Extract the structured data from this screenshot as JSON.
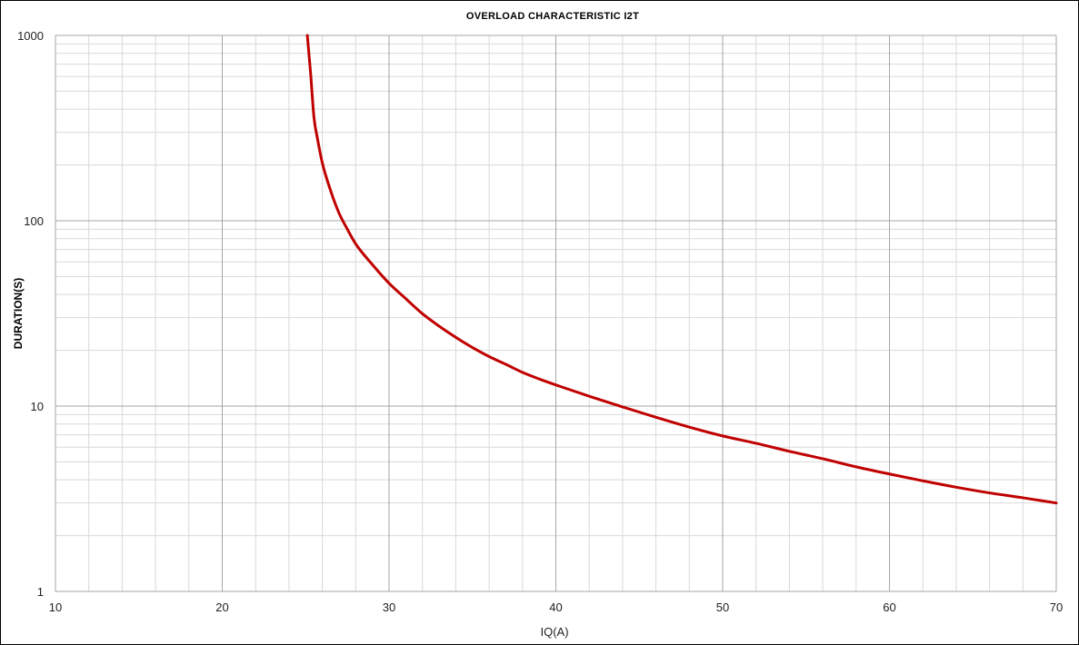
{
  "chart_data": {
    "type": "line",
    "title": "OVERLOAD CHARACTERISTIC I2T",
    "xlabel": "IQ(A)",
    "ylabel": "DURATION(S)",
    "xlim": [
      10,
      70
    ],
    "ylim": [
      1,
      1000
    ],
    "y_scale": "log",
    "x_ticks": [
      10,
      20,
      30,
      40,
      50,
      60,
      70
    ],
    "x_tick_labels": [
      "10",
      "20",
      "30",
      "40",
      "50",
      "60",
      "70"
    ],
    "y_ticks": [
      1,
      10,
      100,
      1000
    ],
    "y_tick_labels": [
      "1",
      "10",
      "100",
      "1000"
    ],
    "grid": true,
    "legend": "none",
    "colors": {
      "line": "#c00000",
      "major_grid": "#a6a6a6",
      "minor_grid": "#d9d9d9",
      "frame": "#000000"
    },
    "series": [
      {
        "x": [
          25.1,
          25.3,
          25.5,
          25.7,
          26.0,
          26.5,
          27.0,
          27.5,
          28,
          29,
          30,
          31,
          32,
          33,
          34,
          35,
          36,
          37,
          38,
          39,
          40,
          42,
          44,
          46,
          48,
          50,
          52,
          54,
          56,
          58,
          60,
          62,
          64,
          66,
          68,
          70
        ],
        "y": [
          1000,
          620,
          360,
          280,
          205,
          145,
          110,
          90,
          75,
          58,
          46,
          38,
          31.5,
          27,
          23.5,
          20.7,
          18.5,
          16.8,
          15.2,
          14,
          13,
          11.3,
          9.9,
          8.7,
          7.7,
          6.9,
          6.3,
          5.7,
          5.2,
          4.7,
          4.3,
          3.95,
          3.65,
          3.4,
          3.2,
          3.0
        ]
      }
    ]
  }
}
